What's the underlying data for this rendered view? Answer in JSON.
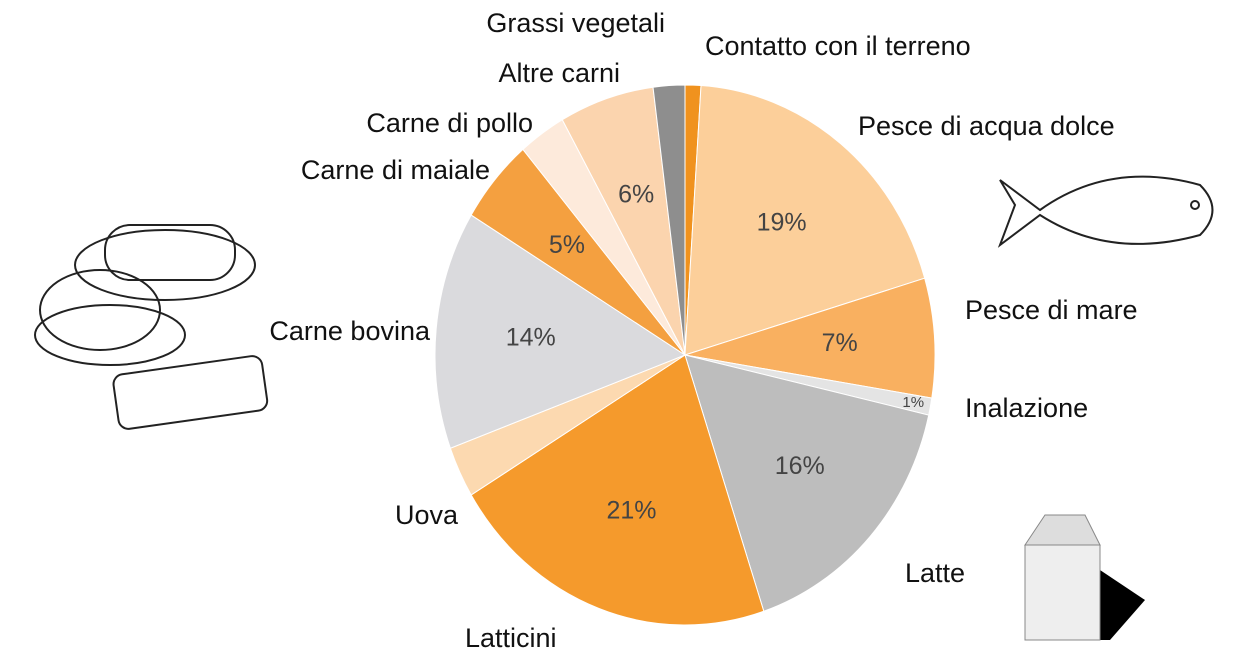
{
  "chart_data": {
    "type": "pie",
    "categories": [
      "Contatto con il terreno",
      "Pesce di acqua dolce",
      "Pesce di mare",
      "Inalazione",
      "Latte",
      "Latticini",
      "Uova",
      "Carne bovina",
      "Carne di maiale",
      "Carne di pollo",
      "Altre carni",
      "Grassi vegetali"
    ],
    "values": [
      1,
      19,
      7,
      1,
      16,
      21,
      3,
      14,
      5,
      3,
      6,
      2
    ],
    "value_labels": [
      null,
      "19%",
      "7%",
      "1%",
      "16%",
      "21%",
      null,
      "14%",
      "5%",
      null,
      "6%",
      null
    ],
    "colors": [
      "#f0921e",
      "#fccf9a",
      "#f9b060",
      "#e4e4e4",
      "#bdbdbd",
      "#f59a2c",
      "#fcd9b0",
      "#dadadd",
      "#f4a040",
      "#fdeadb",
      "#fbd4ae",
      "#8e8e8e"
    ]
  }
}
